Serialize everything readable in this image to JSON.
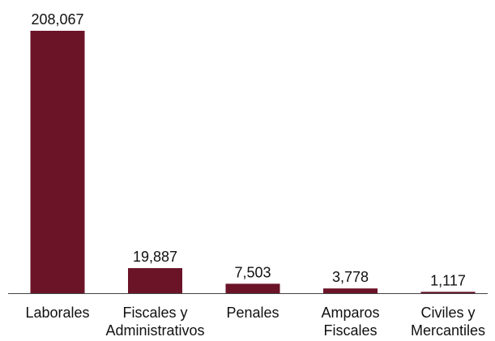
{
  "chart_data": {
    "type": "bar",
    "title": "",
    "xlabel": "",
    "ylabel": "",
    "categories": [
      [
        "Laborales"
      ],
      [
        "Fiscales y",
        "Administrativos"
      ],
      [
        "Penales"
      ],
      [
        "Amparos",
        "Fiscales"
      ],
      [
        "Civiles y",
        "Mercantiles"
      ]
    ],
    "values": [
      208067,
      19887,
      7503,
      3778,
      1117
    ],
    "value_labels": [
      "208,067",
      "19,887",
      "7,503",
      "3,778",
      "1,117"
    ],
    "ylim": [
      0,
      208067
    ],
    "grid": false,
    "legend": "none",
    "colors": {
      "bar": "#6b1428",
      "axis": "#444444",
      "text": "#111111"
    }
  }
}
